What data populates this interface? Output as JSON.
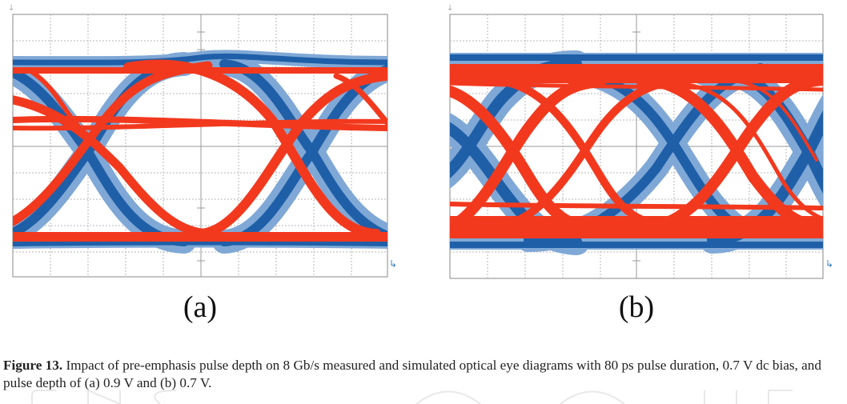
{
  "figure": {
    "panels": [
      {
        "id": "a",
        "label": "(a)",
        "pulse_depth": "0.9 V"
      },
      {
        "id": "b",
        "label": "(b)",
        "pulse_depth": "0.7 V"
      }
    ],
    "caption": {
      "label": "Figure 13.",
      "text": "Impact of pre-emphasis pulse depth on 8 Gb/s measured and simulated optical eye diagrams with 80 ps pulse duration, 0.7 V dc bias, and pulse depth of (a) 0.9 V and (b) 0.7 V."
    },
    "colors": {
      "measured": "#1f5fa8",
      "measured_light": "#7fa8d6",
      "simulated": "#f2391e",
      "grid": "#b7b7b7",
      "frame": "#8a8a8a"
    }
  }
}
